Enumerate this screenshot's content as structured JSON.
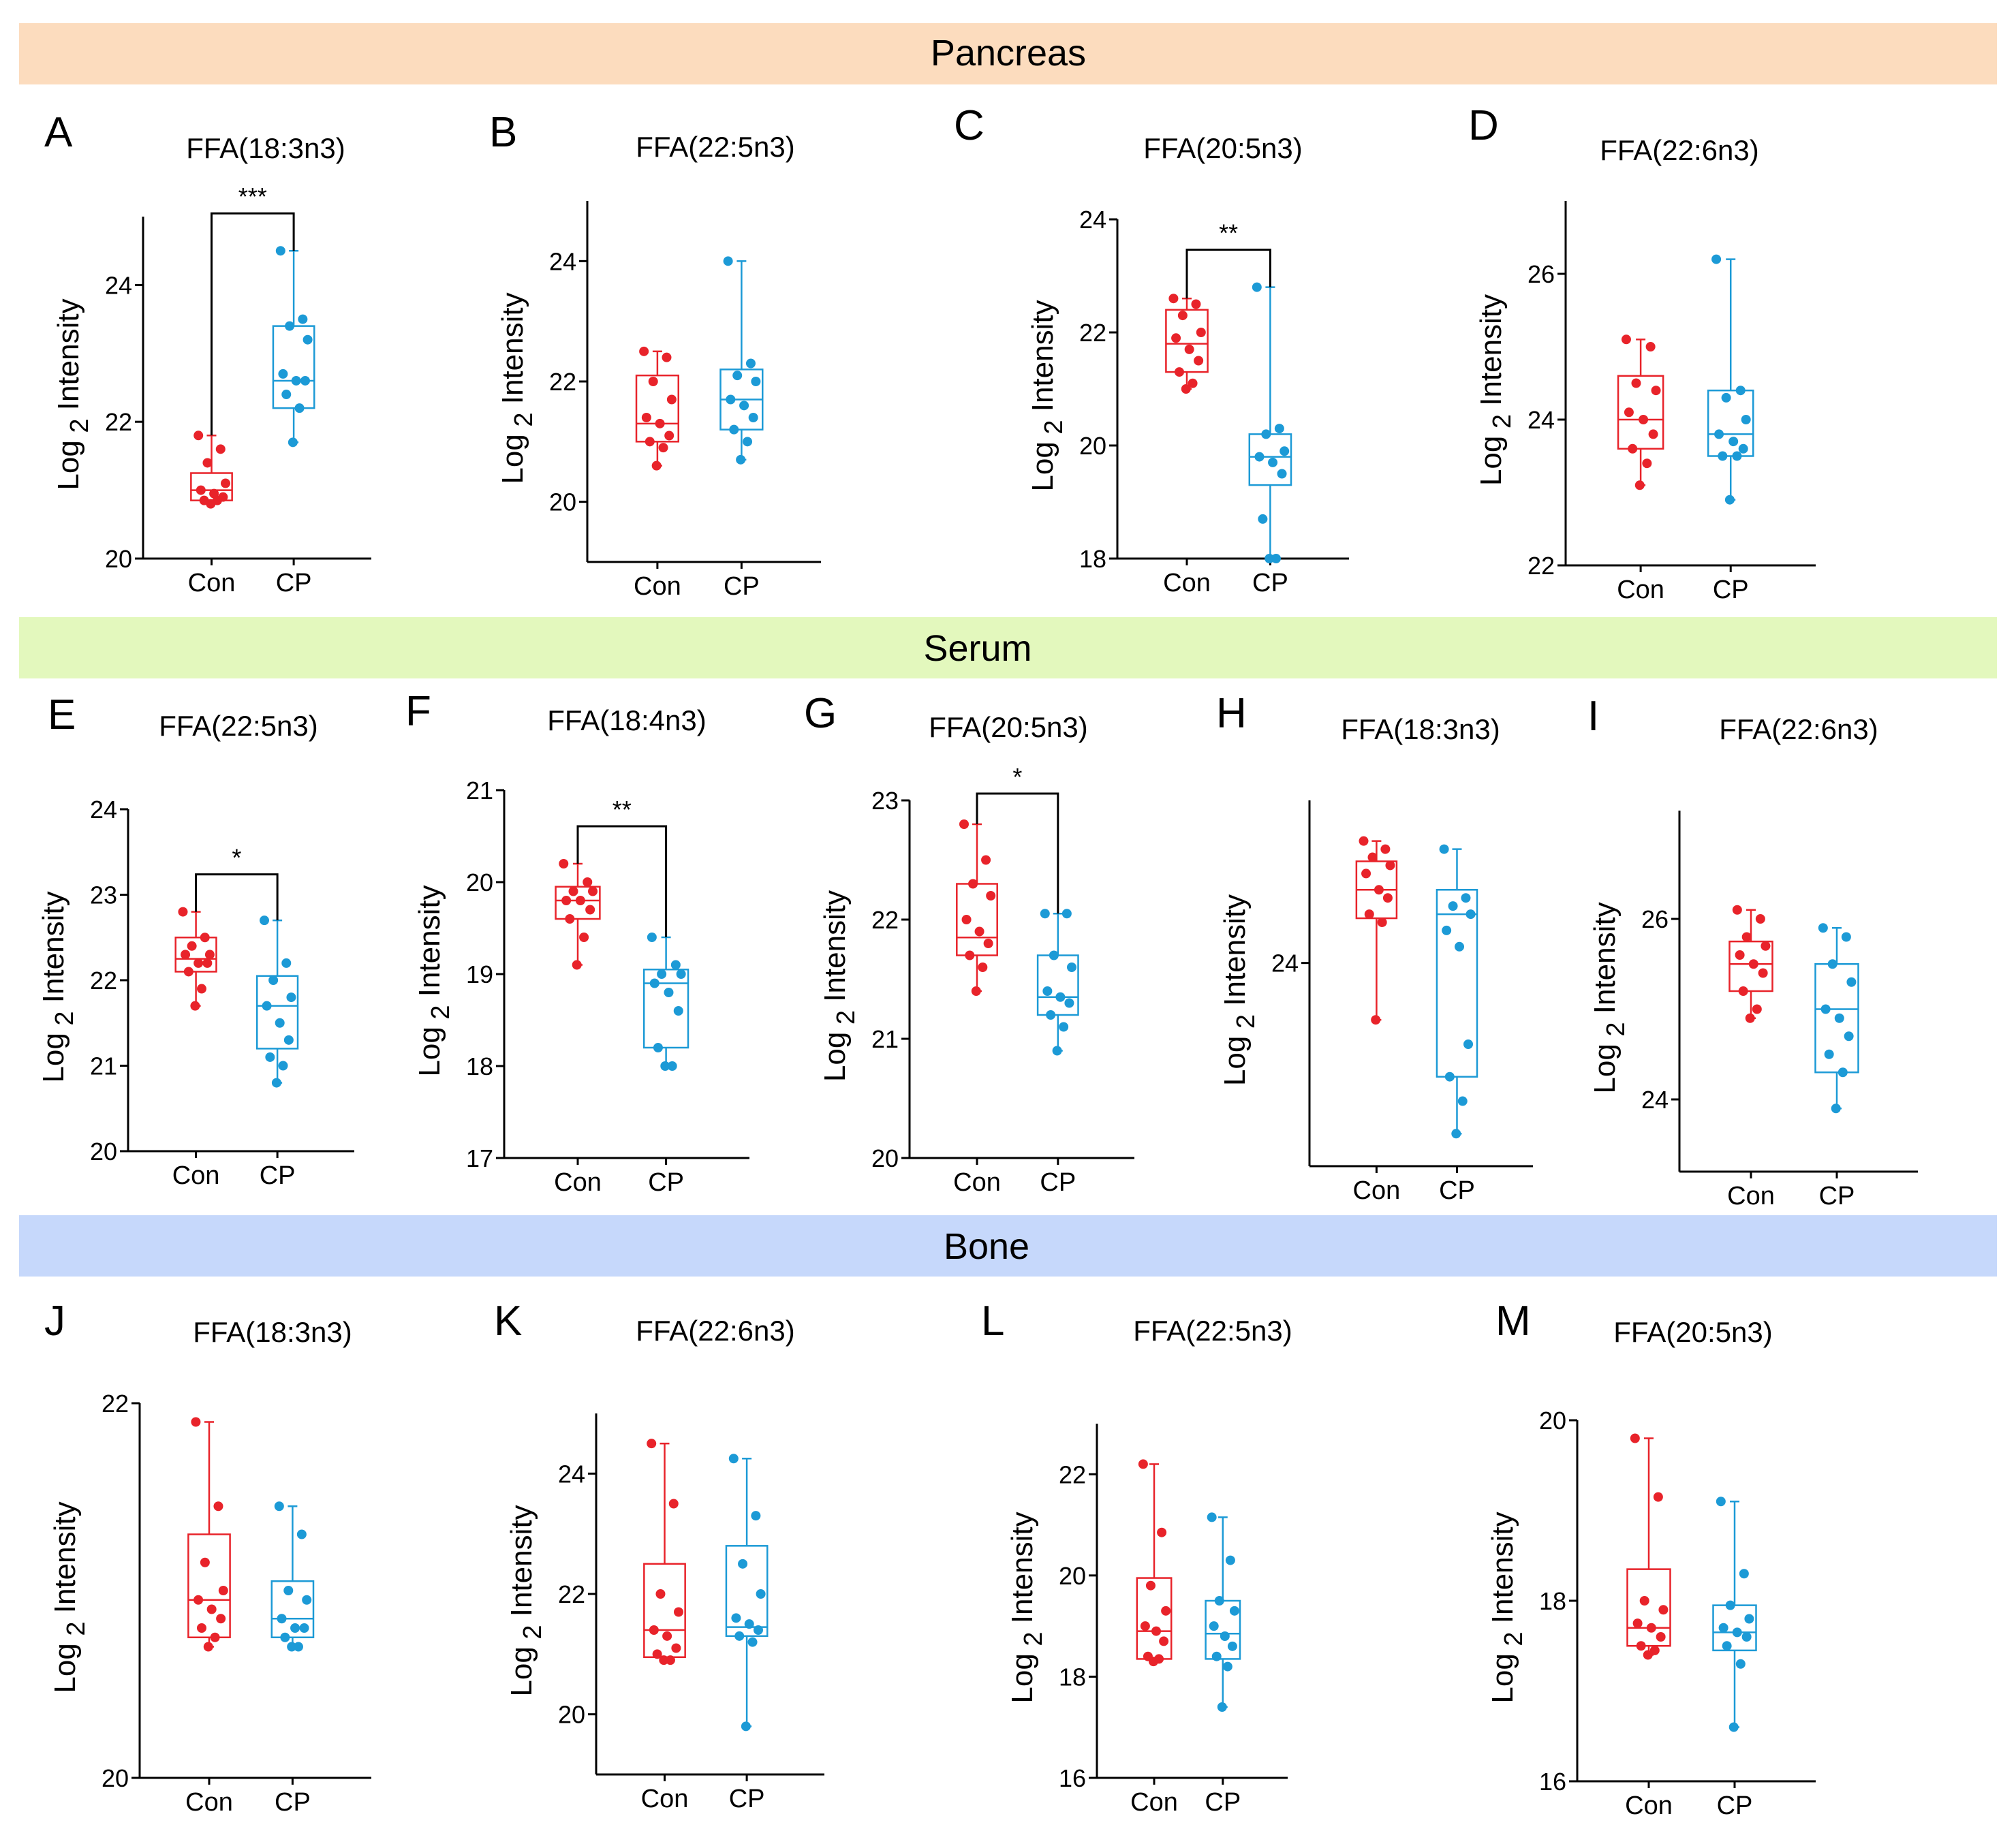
{
  "colors": {
    "con": "#e8232a",
    "cp": "#1c9ad6",
    "pancreas_band": "#fcdcbe",
    "serum_band": "#e3f8bd",
    "bone_band": "#c6d8fb",
    "axis": "#000000"
  },
  "sections": [
    {
      "id": "pancreas",
      "label": "Pancreas"
    },
    {
      "id": "serum",
      "label": "Serum"
    },
    {
      "id": "bone",
      "label": "Bone"
    }
  ],
  "y_axis_label": {
    "main": "Log",
    "sub": "2",
    "tail": " Intensity"
  },
  "chart_data": [
    {
      "panel": "A",
      "section": "pancreas",
      "type": "box",
      "title": "FFA(18:3n3)",
      "categories": [
        "Con",
        "CP"
      ],
      "ylim": [
        20,
        25
      ],
      "yticks": [
        20,
        22,
        24
      ],
      "significance": "***",
      "groups": [
        {
          "name": "Con",
          "min": 20.8,
          "q1": 20.85,
          "median": 21.0,
          "q3": 21.25,
          "max": 21.8,
          "points": [
            21.8,
            21.6,
            21.4,
            21.1,
            21.0,
            20.95,
            20.9,
            20.85,
            20.85,
            20.8
          ]
        },
        {
          "name": "CP",
          "min": 21.7,
          "q1": 22.2,
          "median": 22.6,
          "q3": 23.4,
          "max": 24.5,
          "points": [
            24.5,
            23.5,
            23.4,
            23.2,
            22.7,
            22.6,
            22.6,
            22.4,
            22.2,
            21.7
          ]
        }
      ]
    },
    {
      "panel": "B",
      "section": "pancreas",
      "type": "box",
      "title": "FFA(22:5n3)",
      "categories": [
        "Con",
        "CP"
      ],
      "ylim": [
        19,
        25
      ],
      "yticks": [
        20,
        22,
        24
      ],
      "significance": "",
      "groups": [
        {
          "name": "Con",
          "min": 20.6,
          "q1": 21.0,
          "median": 21.3,
          "q3": 22.1,
          "max": 22.5,
          "points": [
            22.5,
            22.4,
            22.0,
            21.7,
            21.4,
            21.3,
            21.1,
            21.0,
            20.9,
            20.6
          ]
        },
        {
          "name": "CP",
          "min": 20.7,
          "q1": 21.2,
          "median": 21.7,
          "q3": 22.2,
          "max": 24.0,
          "points": [
            24.0,
            22.3,
            22.1,
            22.0,
            21.7,
            21.6,
            21.4,
            21.2,
            21.0,
            20.7
          ]
        }
      ]
    },
    {
      "panel": "C",
      "section": "pancreas",
      "type": "box",
      "title": "FFA(20:5n3)",
      "categories": [
        "Con",
        "CP"
      ],
      "ylim": [
        18,
        24
      ],
      "yticks": [
        18,
        20,
        22,
        24
      ],
      "significance": "**",
      "groups": [
        {
          "name": "Con",
          "min": 21.0,
          "q1": 21.3,
          "median": 21.8,
          "q3": 22.4,
          "max": 22.6,
          "points": [
            22.6,
            22.5,
            22.3,
            22.0,
            21.9,
            21.7,
            21.5,
            21.3,
            21.1,
            21.0
          ]
        },
        {
          "name": "CP",
          "min": 18.0,
          "q1": 19.3,
          "median": 19.8,
          "q3": 20.2,
          "max": 22.8,
          "points": [
            22.8,
            20.3,
            20.2,
            19.9,
            19.8,
            19.7,
            19.5,
            18.7,
            18.0,
            18.0
          ]
        }
      ]
    },
    {
      "panel": "D",
      "section": "pancreas",
      "type": "box",
      "title": "FFA(22:6n3)",
      "categories": [
        "Con",
        "CP"
      ],
      "ylim": [
        22,
        27
      ],
      "yticks": [
        22,
        24,
        26
      ],
      "significance": "",
      "groups": [
        {
          "name": "Con",
          "min": 23.1,
          "q1": 23.6,
          "median": 24.0,
          "q3": 24.6,
          "max": 25.1,
          "points": [
            25.1,
            25.0,
            24.5,
            24.4,
            24.1,
            24.0,
            23.8,
            23.6,
            23.4,
            23.1
          ]
        },
        {
          "name": "CP",
          "min": 22.9,
          "q1": 23.5,
          "median": 23.8,
          "q3": 24.4,
          "max": 26.2,
          "points": [
            26.2,
            24.4,
            24.3,
            24.0,
            23.8,
            23.7,
            23.6,
            23.5,
            23.5,
            22.9
          ]
        }
      ]
    },
    {
      "panel": "E",
      "section": "serum",
      "type": "box",
      "title": "FFA(22:5n3)",
      "categories": [
        "Con",
        "CP"
      ],
      "ylim": [
        20,
        24
      ],
      "yticks": [
        20,
        21,
        22,
        23,
        24
      ],
      "significance": "*",
      "groups": [
        {
          "name": "Con",
          "min": 21.7,
          "q1": 22.1,
          "median": 22.25,
          "q3": 22.5,
          "max": 22.8,
          "points": [
            22.8,
            22.5,
            22.4,
            22.3,
            22.3,
            22.2,
            22.2,
            22.1,
            21.9,
            21.7
          ]
        },
        {
          "name": "CP",
          "min": 20.8,
          "q1": 21.2,
          "median": 21.7,
          "q3": 22.05,
          "max": 22.7,
          "points": [
            22.7,
            22.2,
            22.0,
            21.8,
            21.7,
            21.5,
            21.3,
            21.1,
            21.0,
            20.8
          ]
        }
      ]
    },
    {
      "panel": "F",
      "section": "serum",
      "type": "box",
      "title": "FFA(18:4n3)",
      "categories": [
        "Con",
        "CP"
      ],
      "ylim": [
        17,
        21
      ],
      "yticks": [
        17,
        18,
        19,
        20,
        21
      ],
      "significance": "**",
      "groups": [
        {
          "name": "Con",
          "min": 19.1,
          "q1": 19.6,
          "median": 19.8,
          "q3": 19.95,
          "max": 20.2,
          "points": [
            20.2,
            20.0,
            19.9,
            19.9,
            19.8,
            19.8,
            19.7,
            19.6,
            19.4,
            19.1
          ]
        },
        {
          "name": "CP",
          "min": 18.0,
          "q1": 18.2,
          "median": 18.9,
          "q3": 19.05,
          "max": 19.4,
          "points": [
            19.4,
            19.1,
            19.0,
            19.0,
            18.9,
            18.8,
            18.6,
            18.2,
            18.0,
            18.0
          ]
        }
      ]
    },
    {
      "panel": "G",
      "section": "serum",
      "type": "box",
      "title": "FFA(20:5n3)",
      "categories": [
        "Con",
        "CP"
      ],
      "ylim": [
        20,
        23
      ],
      "yticks": [
        20,
        21,
        22,
        23
      ],
      "significance": "*",
      "groups": [
        {
          "name": "Con",
          "min": 21.4,
          "q1": 21.7,
          "median": 21.85,
          "q3": 22.3,
          "max": 22.8,
          "points": [
            22.8,
            22.5,
            22.3,
            22.2,
            22.0,
            21.9,
            21.8,
            21.7,
            21.6,
            21.4
          ]
        },
        {
          "name": "CP",
          "min": 20.9,
          "q1": 21.2,
          "median": 21.35,
          "q3": 21.7,
          "max": 22.05,
          "points": [
            22.05,
            22.05,
            21.7,
            21.6,
            21.4,
            21.35,
            21.3,
            21.2,
            21.1,
            20.9
          ]
        }
      ]
    },
    {
      "panel": "H",
      "section": "serum",
      "type": "box",
      "title": "FFA(18:3n3)",
      "categories": [
        "Con",
        "CP"
      ],
      "ylim": [
        21.5,
        26
      ],
      "yticks": [
        24
      ],
      "significance": "",
      "groups": [
        {
          "name": "Con",
          "min": 23.3,
          "q1": 24.55,
          "median": 24.9,
          "q3": 25.25,
          "max": 25.5,
          "points": [
            25.5,
            25.4,
            25.3,
            25.2,
            25.1,
            24.9,
            24.8,
            24.6,
            24.5,
            23.3
          ]
        },
        {
          "name": "CP",
          "min": 21.9,
          "q1": 22.6,
          "median": 24.6,
          "q3": 24.9,
          "max": 25.4,
          "points": [
            25.4,
            24.8,
            24.7,
            24.6,
            24.4,
            24.2,
            23.0,
            22.6,
            22.3,
            21.9
          ]
        }
      ]
    },
    {
      "panel": "I",
      "section": "serum",
      "type": "box",
      "title": "FFA(22:6n3)",
      "categories": [
        "Con",
        "CP"
      ],
      "ylim": [
        23.2,
        27.2
      ],
      "yticks": [
        24,
        26
      ],
      "significance": "",
      "groups": [
        {
          "name": "Con",
          "min": 24.9,
          "q1": 25.2,
          "median": 25.5,
          "q3": 25.75,
          "max": 26.1,
          "points": [
            26.1,
            26.0,
            25.8,
            25.7,
            25.6,
            25.5,
            25.4,
            25.2,
            25.0,
            24.9
          ]
        },
        {
          "name": "CP",
          "min": 23.9,
          "q1": 24.3,
          "median": 25.0,
          "q3": 25.5,
          "max": 25.9,
          "points": [
            25.9,
            25.8,
            25.5,
            25.3,
            25.0,
            24.9,
            24.7,
            24.5,
            24.3,
            23.9
          ]
        }
      ]
    },
    {
      "panel": "J",
      "section": "bone",
      "type": "box",
      "title": "FFA(18:3n3)",
      "categories": [
        "Con",
        "CP"
      ],
      "ylim": [
        20,
        22
      ],
      "yticks": [
        20,
        22
      ],
      "significance": "",
      "groups": [
        {
          "name": "Con",
          "min": 20.7,
          "q1": 20.75,
          "median": 20.95,
          "q3": 21.3,
          "max": 21.9,
          "points": [
            21.9,
            21.45,
            21.15,
            21.0,
            20.95,
            20.9,
            20.85,
            20.8,
            20.75,
            20.7
          ]
        },
        {
          "name": "CP",
          "min": 20.7,
          "q1": 20.75,
          "median": 20.85,
          "q3": 21.05,
          "max": 21.45,
          "points": [
            21.45,
            21.3,
            21.0,
            20.95,
            20.85,
            20.8,
            20.8,
            20.75,
            20.7,
            20.7
          ]
        }
      ]
    },
    {
      "panel": "K",
      "section": "bone",
      "type": "box",
      "title": "FFA(22:6n3)",
      "categories": [
        "Con",
        "CP"
      ],
      "ylim": [
        19,
        25
      ],
      "yticks": [
        20,
        22,
        24
      ],
      "significance": "",
      "groups": [
        {
          "name": "Con",
          "min": 20.9,
          "q1": 20.95,
          "median": 21.4,
          "q3": 22.5,
          "max": 24.5,
          "points": [
            24.5,
            23.5,
            22.0,
            21.7,
            21.4,
            21.3,
            21.1,
            21.0,
            20.9,
            20.9
          ]
        },
        {
          "name": "CP",
          "min": 19.8,
          "q1": 21.3,
          "median": 21.45,
          "q3": 22.8,
          "max": 24.25,
          "points": [
            24.25,
            23.3,
            22.5,
            22.0,
            21.6,
            21.5,
            21.4,
            21.3,
            21.2,
            19.8
          ]
        }
      ]
    },
    {
      "panel": "L",
      "section": "bone",
      "type": "box",
      "title": "FFA(22:5n3)",
      "categories": [
        "Con",
        "CP"
      ],
      "ylim": [
        16,
        23
      ],
      "yticks": [
        16,
        18,
        20,
        22
      ],
      "significance": "",
      "groups": [
        {
          "name": "Con",
          "min": 18.3,
          "q1": 18.35,
          "median": 18.9,
          "q3": 19.95,
          "max": 22.2,
          "points": [
            22.2,
            20.85,
            19.8,
            19.3,
            19.0,
            18.9,
            18.7,
            18.4,
            18.35,
            18.3
          ]
        },
        {
          "name": "CP",
          "min": 17.4,
          "q1": 18.35,
          "median": 18.85,
          "q3": 19.5,
          "max": 21.15,
          "points": [
            21.15,
            20.3,
            19.5,
            19.3,
            19.0,
            18.8,
            18.6,
            18.4,
            18.2,
            17.4
          ]
        }
      ]
    },
    {
      "panel": "M",
      "section": "bone",
      "type": "box",
      "title": "FFA(20:5n3)",
      "categories": [
        "Con",
        "CP"
      ],
      "ylim": [
        16,
        20
      ],
      "yticks": [
        16,
        18,
        20
      ],
      "significance": "",
      "groups": [
        {
          "name": "Con",
          "min": 17.4,
          "q1": 17.5,
          "median": 17.7,
          "q3": 18.35,
          "max": 19.8,
          "points": [
            19.8,
            19.15,
            18.0,
            17.9,
            17.75,
            17.7,
            17.6,
            17.5,
            17.45,
            17.4
          ]
        },
        {
          "name": "CP",
          "min": 16.6,
          "q1": 17.45,
          "median": 17.65,
          "q3": 17.95,
          "max": 19.1,
          "points": [
            19.1,
            18.3,
            17.95,
            17.8,
            17.7,
            17.65,
            17.6,
            17.5,
            17.3,
            16.6
          ]
        }
      ]
    }
  ]
}
